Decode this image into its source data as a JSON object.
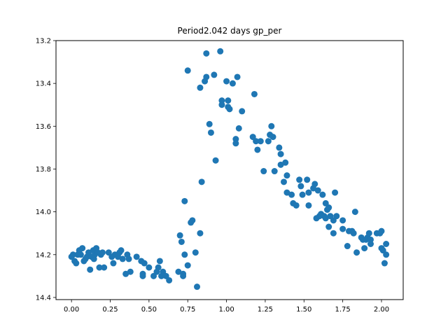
{
  "chart_data": {
    "type": "scatter",
    "title": "Period2.042 days gp_per",
    "xlabel": "",
    "ylabel": "",
    "xlim": [
      -0.1,
      2.14
    ],
    "ylim": [
      14.41,
      13.2
    ],
    "y_inverted": true,
    "grid": false,
    "marker_color": "#1f77b4",
    "x_ticks": [
      0.0,
      0.25,
      0.5,
      0.75,
      1.0,
      1.25,
      1.5,
      1.75,
      2.0
    ],
    "x_tick_labels": [
      "0.00",
      "0.25",
      "0.50",
      "0.75",
      "1.00",
      "1.25",
      "1.50",
      "1.75",
      "2.00"
    ],
    "y_ticks": [
      13.2,
      13.4,
      13.6,
      13.8,
      14.0,
      14.2,
      14.4
    ],
    "y_tick_labels": [
      "13.2",
      "13.4",
      "13.6",
      "13.8",
      "14.0",
      "14.2",
      "14.4"
    ],
    "series": [
      {
        "points": [
          [
            0.0,
            14.21
          ],
          [
            0.01,
            14.2
          ],
          [
            0.02,
            14.23
          ],
          [
            0.03,
            14.24
          ],
          [
            0.04,
            14.2
          ],
          [
            0.05,
            14.18
          ],
          [
            0.06,
            14.2
          ],
          [
            0.07,
            14.17
          ],
          [
            0.08,
            14.23
          ],
          [
            0.09,
            14.22
          ],
          [
            0.1,
            14.21
          ],
          [
            0.11,
            14.19
          ],
          [
            0.12,
            14.27
          ],
          [
            0.13,
            14.21
          ],
          [
            0.14,
            14.18
          ],
          [
            0.145,
            14.22
          ],
          [
            0.15,
            14.2
          ],
          [
            0.16,
            14.17
          ],
          [
            0.17,
            14.19
          ],
          [
            0.18,
            14.26
          ],
          [
            0.19,
            14.2
          ],
          [
            0.2,
            14.19
          ],
          [
            0.21,
            14.26
          ],
          [
            0.24,
            14.19
          ],
          [
            0.26,
            14.21
          ],
          [
            0.27,
            14.24
          ],
          [
            0.28,
            14.2
          ],
          [
            0.3,
            14.21
          ],
          [
            0.31,
            14.19
          ],
          [
            0.32,
            14.18
          ],
          [
            0.33,
            14.22
          ],
          [
            0.35,
            14.29
          ],
          [
            0.36,
            14.2
          ],
          [
            0.37,
            14.22
          ],
          [
            0.38,
            14.28
          ],
          [
            0.42,
            14.21
          ],
          [
            0.45,
            14.23
          ],
          [
            0.46,
            14.29
          ],
          [
            0.46,
            14.3
          ],
          [
            0.47,
            14.24
          ],
          [
            0.5,
            14.26
          ],
          [
            0.53,
            14.3
          ],
          [
            0.55,
            14.28
          ],
          [
            0.56,
            14.26
          ],
          [
            0.57,
            14.23
          ],
          [
            0.58,
            14.3
          ],
          [
            0.59,
            14.28
          ],
          [
            0.61,
            14.3
          ],
          [
            0.63,
            14.32
          ],
          [
            0.69,
            14.28
          ],
          [
            0.7,
            14.11
          ],
          [
            0.71,
            14.14
          ],
          [
            0.72,
            14.29
          ],
          [
            0.72,
            14.3
          ],
          [
            0.73,
            14.2
          ],
          [
            0.73,
            13.95
          ],
          [
            0.75,
            14.25
          ],
          [
            0.77,
            14.05
          ],
          [
            0.78,
            14.04
          ],
          [
            0.8,
            14.19
          ],
          [
            0.81,
            14.35
          ],
          [
            0.83,
            14.1
          ],
          [
            0.84,
            13.86
          ],
          [
            0.75,
            13.34
          ],
          [
            0.83,
            13.42
          ],
          [
            0.86,
            13.39
          ],
          [
            0.87,
            13.37
          ],
          [
            0.87,
            13.26
          ],
          [
            0.89,
            13.59
          ],
          [
            0.9,
            13.63
          ],
          [
            0.92,
            13.36
          ],
          [
            0.93,
            13.76
          ],
          [
            0.96,
            13.25
          ],
          [
            0.97,
            13.48
          ],
          [
            0.97,
            13.5
          ],
          [
            1.0,
            13.39
          ],
          [
            1.01,
            13.48
          ],
          [
            1.01,
            13.51
          ],
          [
            1.02,
            13.52
          ],
          [
            1.04,
            13.4
          ],
          [
            1.06,
            13.66
          ],
          [
            1.06,
            13.68
          ],
          [
            1.07,
            13.37
          ],
          [
            1.08,
            13.61
          ],
          [
            1.1,
            13.53
          ],
          [
            1.17,
            13.65
          ],
          [
            1.18,
            13.45
          ],
          [
            1.19,
            13.67
          ],
          [
            1.2,
            13.71
          ],
          [
            1.22,
            13.67
          ],
          [
            1.24,
            13.81
          ],
          [
            1.27,
            13.67
          ],
          [
            1.28,
            13.64
          ],
          [
            1.29,
            13.6
          ],
          [
            1.3,
            13.65
          ],
          [
            1.31,
            13.81
          ],
          [
            1.34,
            13.7
          ],
          [
            1.35,
            13.73
          ],
          [
            1.35,
            13.78
          ],
          [
            1.37,
            13.86
          ],
          [
            1.38,
            13.77
          ],
          [
            1.39,
            13.91
          ],
          [
            1.39,
            13.83
          ],
          [
            1.42,
            13.92
          ],
          [
            1.43,
            13.96
          ],
          [
            1.45,
            13.97
          ],
          [
            1.47,
            13.85
          ],
          [
            1.48,
            13.88
          ],
          [
            1.49,
            13.92
          ],
          [
            1.52,
            13.85
          ],
          [
            1.53,
            13.91
          ],
          [
            1.53,
            13.97
          ],
          [
            1.56,
            13.89
          ],
          [
            1.57,
            13.87
          ],
          [
            1.58,
            14.03
          ],
          [
            1.59,
            13.9
          ],
          [
            1.6,
            14.02
          ],
          [
            1.61,
            14.01
          ],
          [
            1.62,
            13.92
          ],
          [
            1.63,
            14.02
          ],
          [
            1.64,
            13.96
          ],
          [
            1.64,
            14.03
          ],
          [
            1.65,
            13.99
          ],
          [
            1.66,
            14.07
          ],
          [
            1.66,
            13.98
          ],
          [
            1.67,
            14.02
          ],
          [
            1.69,
            14.1
          ],
          [
            1.69,
            14.04
          ],
          [
            1.7,
            13.91
          ],
          [
            1.71,
            14.02
          ],
          [
            1.75,
            14.04
          ],
          [
            1.75,
            14.08
          ],
          [
            1.78,
            14.16
          ],
          [
            1.79,
            14.09
          ],
          [
            1.81,
            14.09
          ],
          [
            1.82,
            14.1
          ],
          [
            1.83,
            14.0
          ],
          [
            1.84,
            14.19
          ],
          [
            1.87,
            14.12
          ],
          [
            1.88,
            14.13
          ],
          [
            1.89,
            14.17
          ],
          [
            1.9,
            14.13
          ],
          [
            1.91,
            14.12
          ],
          [
            1.92,
            14.1
          ],
          [
            1.93,
            14.13
          ],
          [
            1.93,
            14.15
          ],
          [
            1.97,
            14.1
          ],
          [
            1.99,
            14.1
          ],
          [
            2.0,
            14.09
          ],
          [
            2.0,
            14.17
          ],
          [
            2.01,
            14.18
          ],
          [
            2.02,
            14.24
          ],
          [
            2.03,
            14.15
          ],
          [
            2.03,
            14.2
          ]
        ]
      }
    ]
  }
}
